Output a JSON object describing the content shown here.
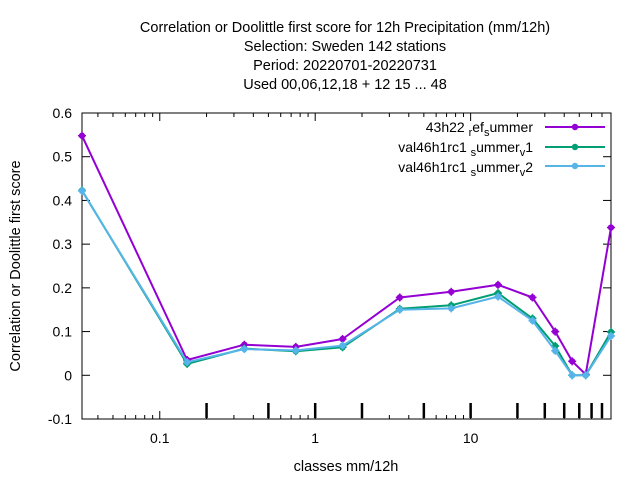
{
  "chart_data": {
    "type": "line",
    "title_lines": [
      "Correlation or Doolittle first score  for 12h Precipitation (mm/12h)",
      "Selection: Sweden    142 stations",
      "Period: 20220701-20220731",
      "Used  00,06,12,18  + 12 15 ... 48"
    ],
    "xlabel": "classes mm/12h",
    "ylabel": "Correlation or Doolittle first score",
    "x_scale": "log",
    "xlim": [
      0.0316,
      80
    ],
    "ylim": [
      -0.1,
      0.6
    ],
    "y_ticks": [
      {
        "value": -0.1,
        "label": "-0.1"
      },
      {
        "value": 0.0,
        "label": "0"
      },
      {
        "value": 0.1,
        "label": "0.1"
      },
      {
        "value": 0.2,
        "label": "0.2"
      },
      {
        "value": 0.3,
        "label": "0.3"
      },
      {
        "value": 0.4,
        "label": "0.4"
      },
      {
        "value": 0.5,
        "label": "0.5"
      },
      {
        "value": 0.6,
        "label": "0.6"
      }
    ],
    "x_major_ticks": [
      {
        "value": 0.1,
        "label": "0.1"
      },
      {
        "value": 1,
        "label": "1"
      },
      {
        "value": 10,
        "label": "10"
      }
    ],
    "x_class_ticks": [
      0.2,
      0.5,
      1,
      2,
      5,
      10,
      20,
      30,
      40,
      50,
      60,
      70
    ],
    "legend_position": "top-right",
    "grid": false,
    "x": [
      0.0316,
      0.15,
      0.35,
      0.75,
      1.5,
      3.5,
      7.5,
      15,
      25,
      35,
      45,
      55,
      80
    ],
    "series": [
      {
        "name_main": "43h22",
        "name_sub1": "r",
        "name_mid": "ef",
        "name_sub2": "s",
        "name_end": "ummer",
        "color": "#9400d3",
        "values": [
          0.548,
          0.035,
          0.07,
          0.065,
          0.083,
          0.178,
          0.191,
          0.207,
          0.178,
          0.1,
          0.032,
          0.002,
          0.338
        ]
      },
      {
        "name_main": "val46h1rc1",
        "name_sub1": "s",
        "name_mid": "ummer",
        "name_sub2": "v",
        "name_end": "1",
        "color": "#009e73",
        "values": [
          0.423,
          0.026,
          0.061,
          0.055,
          0.064,
          0.152,
          0.16,
          0.188,
          0.13,
          0.067,
          0.0,
          0.0,
          0.099
        ]
      },
      {
        "name_main": "val46h1rc1",
        "name_sub1": "s",
        "name_mid": "ummer",
        "name_sub2": "v",
        "name_end": "2",
        "color": "#56b4e9",
        "values": [
          0.422,
          0.03,
          0.06,
          0.057,
          0.068,
          0.15,
          0.153,
          0.18,
          0.125,
          0.056,
          0.0,
          0.0,
          0.09
        ]
      }
    ]
  }
}
